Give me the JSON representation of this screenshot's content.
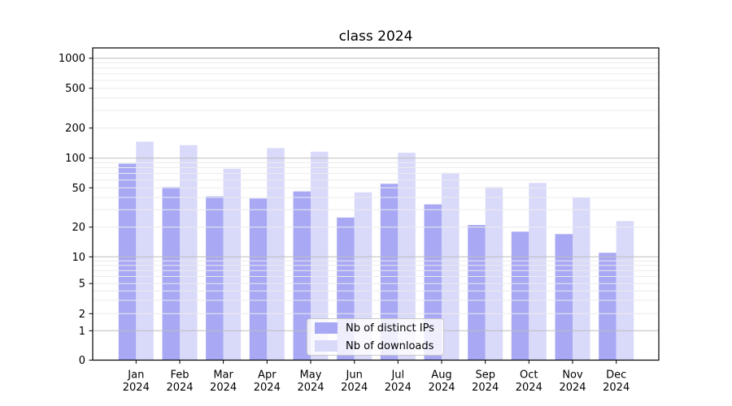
{
  "chart_data": {
    "type": "bar",
    "title": "class 2024",
    "categories": [
      "Jan",
      "Feb",
      "Mar",
      "Apr",
      "May",
      "Jun",
      "Jul",
      "Aug",
      "Sep",
      "Oct",
      "Nov",
      "Dec"
    ],
    "category_year": "2024",
    "series": [
      {
        "name": "Nb of distinct IPs",
        "color": "#a8a8f5",
        "values": [
          88,
          51,
          41,
          39,
          46,
          25,
          55,
          34,
          21,
          18,
          17,
          11
        ]
      },
      {
        "name": "Nb of downloads",
        "color": "#d9d9fa",
        "values": [
          146,
          135,
          78,
          126,
          116,
          45,
          113,
          71,
          51,
          56,
          40,
          23
        ]
      }
    ],
    "xlabel": "",
    "ylabel": "",
    "yaxis": {
      "scale": "symlog",
      "ticks": [
        0,
        1,
        2,
        5,
        10,
        20,
        50,
        100,
        200,
        500,
        1000
      ],
      "min": 0,
      "max": 1270
    },
    "grid": true,
    "legend_position": "lower center"
  },
  "colors": {
    "grid_major": "#bdbdbd",
    "grid_minor": "#ececec",
    "spine": "#000000",
    "background": "#ffffff"
  }
}
